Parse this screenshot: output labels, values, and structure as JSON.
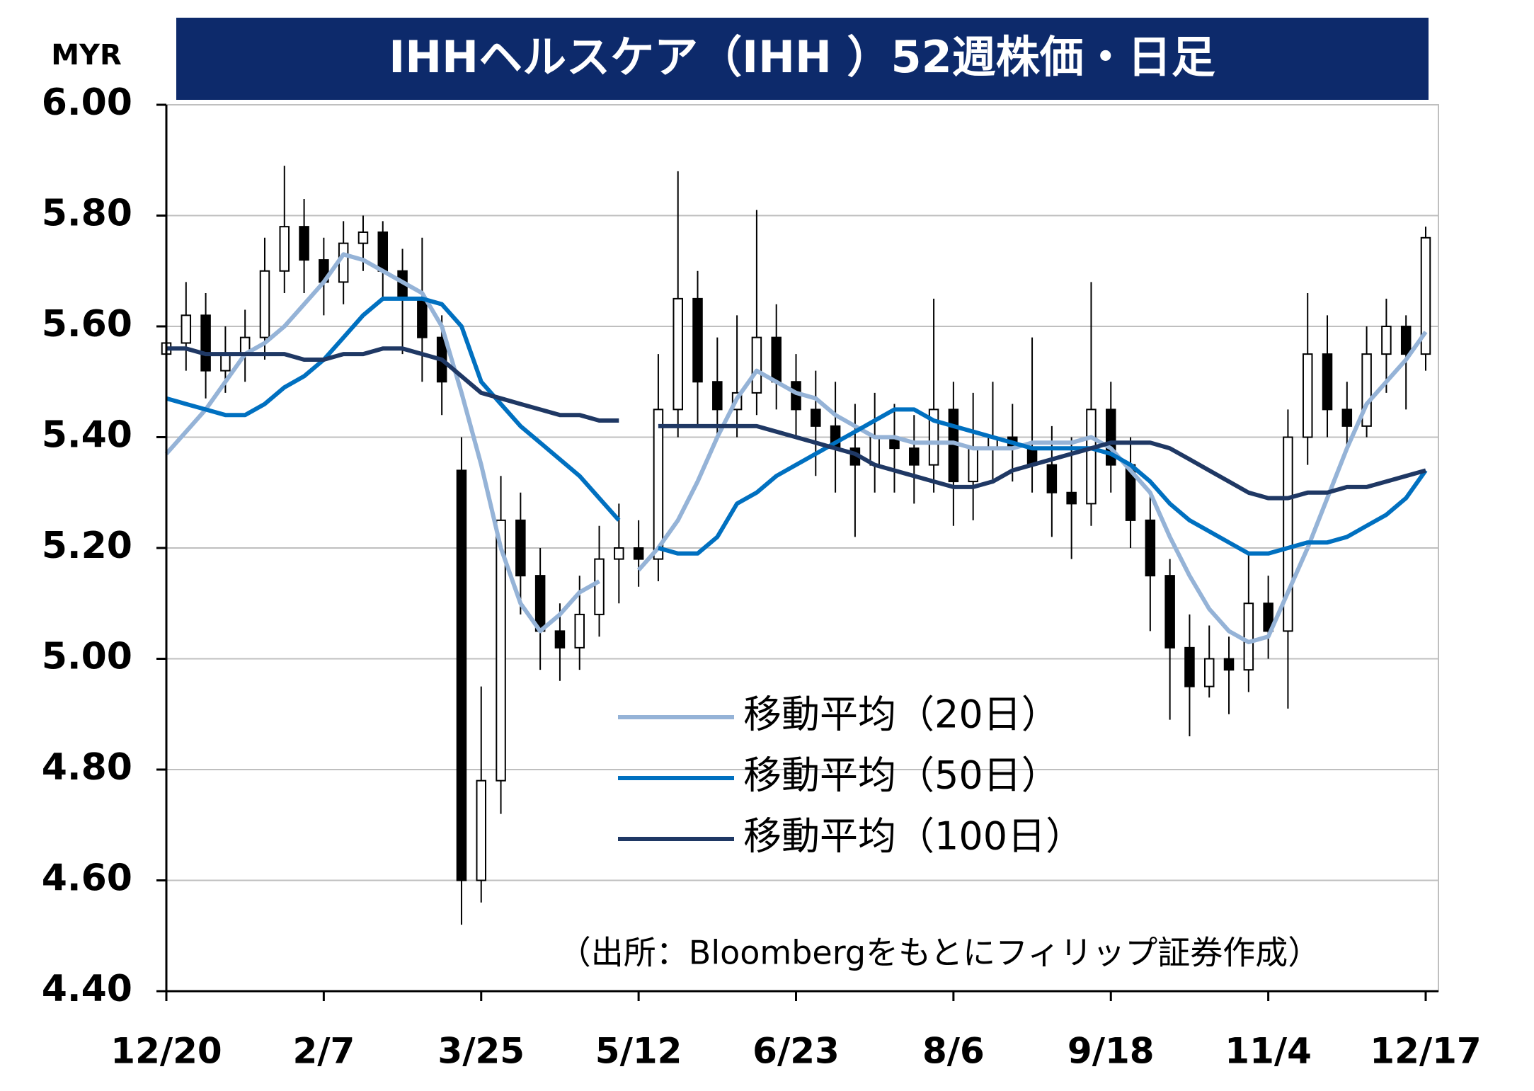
{
  "chart_data": {
    "type": "candlestick",
    "title": "IHHヘルスケア（IHH ）52週株価・日足",
    "y_label": "MYR",
    "note": "（出所：Bloombergをもとにフィリップ証券作成）",
    "categories": [
      "12/20",
      null,
      null,
      null,
      null,
      null,
      null,
      null,
      "2/7",
      null,
      null,
      null,
      null,
      null,
      null,
      null,
      "3/25",
      null,
      null,
      null,
      null,
      null,
      null,
      null,
      "5/12",
      null,
      null,
      null,
      null,
      null,
      null,
      null,
      "6/23",
      null,
      null,
      null,
      null,
      null,
      null,
      null,
      "8/6",
      null,
      null,
      null,
      null,
      null,
      null,
      null,
      "9/18",
      null,
      null,
      null,
      null,
      null,
      null,
      null,
      "11/4",
      null,
      null,
      null,
      null,
      null,
      null,
      null,
      "12/17"
    ],
    "open": [
      5.55,
      5.57,
      5.62,
      5.52,
      5.55,
      5.58,
      5.7,
      5.78,
      5.72,
      5.68,
      5.75,
      5.77,
      5.7,
      5.65,
      5.58,
      5.34,
      4.6,
      4.78,
      5.25,
      5.15,
      5.05,
      5.02,
      5.08,
      5.18,
      5.2,
      5.18,
      5.45,
      5.65,
      5.5,
      5.45,
      5.48,
      5.58,
      5.5,
      5.45,
      5.42,
      5.38,
      5.35,
      5.4,
      5.38,
      5.35,
      5.45,
      5.32,
      5.38,
      5.4,
      5.38,
      5.35,
      5.3,
      5.28,
      5.45,
      5.35,
      5.25,
      5.15,
      5.02,
      4.95,
      5.0,
      4.98,
      5.1,
      5.05,
      5.4,
      5.55,
      5.45,
      5.42,
      5.55,
      5.6,
      5.55
    ],
    "high": [
      5.63,
      5.68,
      5.66,
      5.6,
      5.63,
      5.76,
      5.89,
      5.83,
      5.76,
      5.79,
      5.8,
      5.79,
      5.74,
      5.76,
      5.62,
      5.4,
      4.95,
      5.33,
      5.3,
      5.2,
      5.1,
      5.15,
      5.24,
      5.28,
      5.25,
      5.55,
      5.88,
      5.7,
      5.58,
      5.62,
      5.81,
      5.64,
      5.55,
      5.52,
      5.5,
      5.46,
      5.48,
      5.46,
      5.44,
      5.65,
      5.5,
      5.48,
      5.5,
      5.46,
      5.58,
      5.42,
      5.4,
      5.68,
      5.5,
      5.4,
      5.3,
      5.18,
      5.08,
      5.06,
      5.04,
      5.19,
      5.15,
      5.45,
      5.66,
      5.62,
      5.5,
      5.6,
      5.65,
      5.62,
      5.78
    ],
    "low": [
      5.5,
      5.52,
      5.47,
      5.48,
      5.5,
      5.54,
      5.66,
      5.66,
      5.62,
      5.64,
      5.7,
      5.65,
      5.55,
      5.5,
      5.44,
      4.52,
      4.56,
      4.72,
      5.08,
      4.98,
      4.96,
      4.98,
      5.04,
      5.1,
      5.13,
      5.14,
      5.4,
      5.42,
      5.4,
      5.4,
      5.44,
      5.45,
      5.4,
      5.33,
      5.3,
      5.22,
      5.3,
      5.3,
      5.28,
      5.3,
      5.24,
      5.25,
      5.32,
      5.32,
      5.3,
      5.22,
      5.18,
      5.24,
      5.3,
      5.2,
      5.05,
      4.89,
      4.86,
      4.93,
      4.9,
      4.94,
      5.0,
      4.91,
      5.35,
      5.4,
      5.38,
      5.4,
      5.48,
      5.45,
      5.52
    ],
    "close": [
      5.57,
      5.62,
      5.52,
      5.55,
      5.58,
      5.7,
      5.78,
      5.72,
      5.68,
      5.75,
      5.77,
      5.7,
      5.65,
      5.58,
      5.5,
      4.6,
      4.78,
      5.25,
      5.15,
      5.05,
      5.02,
      5.08,
      5.18,
      5.2,
      5.18,
      5.45,
      5.65,
      5.5,
      5.45,
      5.48,
      5.58,
      5.5,
      5.45,
      5.42,
      5.38,
      5.35,
      5.4,
      5.38,
      5.35,
      5.45,
      5.32,
      5.38,
      5.4,
      5.38,
      5.35,
      5.3,
      5.28,
      5.45,
      5.35,
      5.25,
      5.15,
      5.02,
      4.95,
      5.0,
      4.98,
      5.1,
      5.05,
      5.4,
      5.55,
      5.45,
      5.42,
      5.55,
      5.6,
      5.55,
      5.76
    ],
    "up_color": "#ffffff",
    "down_color": "#000000",
    "series": [
      {
        "name": "移動平均（20日）",
        "color": "#95b3d7",
        "values": [
          5.37,
          5.41,
          5.45,
          5.5,
          5.55,
          5.57,
          5.6,
          5.64,
          5.68,
          5.73,
          5.72,
          5.7,
          5.68,
          5.66,
          5.6,
          5.48,
          5.35,
          5.2,
          5.1,
          5.05,
          5.08,
          5.12,
          5.14,
          null,
          5.16,
          5.2,
          5.25,
          5.32,
          5.4,
          5.47,
          5.52,
          5.5,
          5.48,
          5.47,
          5.44,
          5.42,
          5.4,
          5.4,
          5.39,
          5.39,
          5.39,
          5.38,
          5.38,
          5.38,
          5.39,
          5.39,
          5.39,
          5.4,
          5.38,
          5.34,
          5.3,
          5.22,
          5.15,
          5.09,
          5.05,
          5.03,
          5.04,
          5.12,
          5.2,
          5.29,
          5.38,
          5.46,
          5.5,
          5.54,
          5.59
        ]
      },
      {
        "name": "移動平均（50日）",
        "color": "#0070c0",
        "values": [
          5.47,
          5.46,
          5.45,
          5.44,
          5.44,
          5.46,
          5.49,
          5.51,
          5.54,
          5.58,
          5.62,
          5.65,
          5.65,
          5.65,
          5.64,
          5.6,
          5.5,
          5.46,
          5.42,
          5.39,
          5.36,
          5.33,
          5.29,
          5.25,
          null,
          5.2,
          5.19,
          5.19,
          5.22,
          5.28,
          5.3,
          5.33,
          5.35,
          5.37,
          5.39,
          5.41,
          5.43,
          5.45,
          5.45,
          5.43,
          5.42,
          5.41,
          5.4,
          5.39,
          5.38,
          5.38,
          5.38,
          5.38,
          5.37,
          5.35,
          5.32,
          5.28,
          5.25,
          5.23,
          5.21,
          5.19,
          5.19,
          5.2,
          5.21,
          5.21,
          5.22,
          5.24,
          5.26,
          5.29,
          5.34
        ]
      },
      {
        "name": "移動平均（100日）",
        "color": "#1f3864",
        "values": [
          5.56,
          5.56,
          5.55,
          5.55,
          5.55,
          5.55,
          5.55,
          5.54,
          5.54,
          5.55,
          5.55,
          5.56,
          5.56,
          5.55,
          5.54,
          5.51,
          5.48,
          5.47,
          5.46,
          5.45,
          5.44,
          5.44,
          5.43,
          5.43,
          null,
          5.42,
          5.42,
          5.42,
          5.42,
          5.42,
          5.42,
          5.41,
          5.4,
          5.39,
          5.38,
          5.37,
          5.35,
          5.34,
          5.33,
          5.32,
          5.31,
          5.31,
          5.32,
          5.34,
          5.35,
          5.36,
          5.37,
          5.38,
          5.39,
          5.39,
          5.39,
          5.38,
          5.36,
          5.34,
          5.32,
          5.3,
          5.29,
          5.29,
          5.3,
          5.3,
          5.31,
          5.31,
          5.32,
          5.33,
          5.34
        ]
      }
    ],
    "ylim": [
      4.4,
      6.0
    ],
    "yticks": [
      {
        "value": 4.4,
        "label": "4.40"
      },
      {
        "value": 4.6,
        "label": "4.60"
      },
      {
        "value": 4.8,
        "label": "4.80"
      },
      {
        "value": 5.0,
        "label": "5.00"
      },
      {
        "value": 5.2,
        "label": "5.20"
      },
      {
        "value": 5.4,
        "label": "5.40"
      },
      {
        "value": 5.6,
        "label": "5.60"
      },
      {
        "value": 5.8,
        "label": "5.80"
      },
      {
        "value": 6.0,
        "label": "6.00"
      }
    ],
    "grid": true,
    "legend": "lower-center"
  }
}
